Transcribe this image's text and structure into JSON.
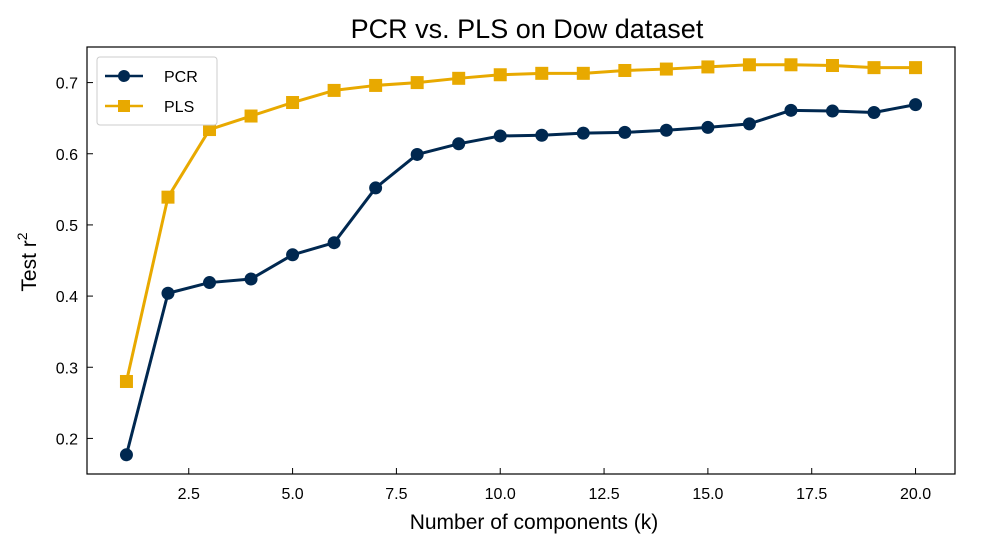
{
  "chart_data": {
    "type": "line",
    "title": "PCR vs. PLS on Dow dataset",
    "xlabel": "Number of components (k)",
    "ylabel": "Test r",
    "ylabel_superscript": "2",
    "x": [
      1,
      2,
      3,
      4,
      5,
      6,
      7,
      8,
      9,
      10,
      11,
      12,
      13,
      14,
      15,
      16,
      17,
      18,
      19,
      20
    ],
    "series": [
      {
        "name": "PCR",
        "marker": "circle",
        "color": "#002850",
        "values": [
          0.177,
          0.404,
          0.419,
          0.424,
          0.458,
          0.475,
          0.552,
          0.599,
          0.614,
          0.625,
          0.626,
          0.629,
          0.63,
          0.633,
          0.637,
          0.642,
          0.661,
          0.66,
          0.658,
          0.669
        ]
      },
      {
        "name": "PLS",
        "marker": "square",
        "color": "#E8A900",
        "values": [
          0.28,
          0.539,
          0.634,
          0.653,
          0.672,
          0.689,
          0.696,
          0.7,
          0.706,
          0.711,
          0.713,
          0.713,
          0.717,
          0.719,
          0.722,
          0.725,
          0.725,
          0.724,
          0.721,
          0.721
        ]
      }
    ],
    "xlim": [
      0.05,
      20.95
    ],
    "ylim": [
      0.15,
      0.75
    ],
    "xticks": [
      2.5,
      5.0,
      7.5,
      10.0,
      12.5,
      15.0,
      17.5,
      20.0
    ],
    "xtick_labels": [
      "2.5",
      "5.0",
      "7.5",
      "10.0",
      "12.5",
      "15.0",
      "17.5",
      "20.0"
    ],
    "yticks": [
      0.2,
      0.3,
      0.4,
      0.5,
      0.6,
      0.7
    ],
    "ytick_labels": [
      "0.2",
      "0.3",
      "0.4",
      "0.5",
      "0.6",
      "0.7"
    ],
    "grid": false,
    "legend_position": "top-left"
  }
}
